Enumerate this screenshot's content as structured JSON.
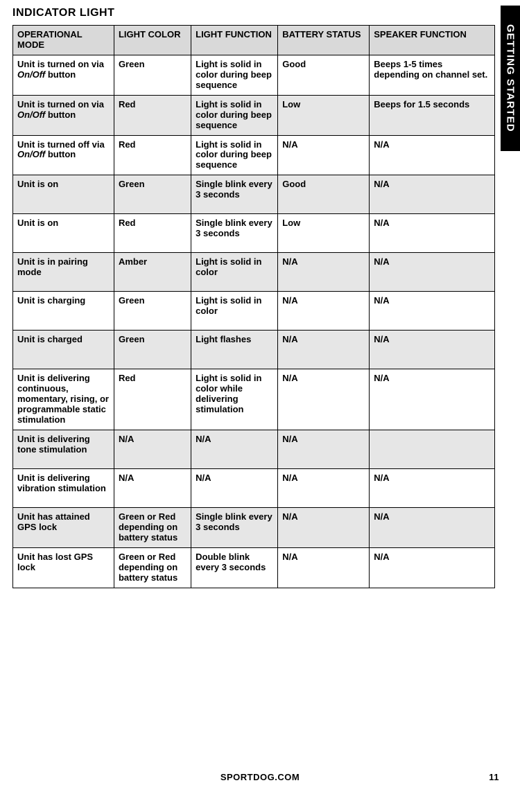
{
  "title": "INDICATOR LIGHT",
  "side_tab": "GETTING STARTED",
  "footer": {
    "site": "SPORTDOG.COM",
    "page": "11"
  },
  "table": {
    "headers": [
      "OPERATIONAL MODE",
      "LIGHT COLOR",
      "LIGHT FUNCTION",
      "BATTERY STATUS",
      "SPEAKER FUNCTION"
    ],
    "rows": [
      {
        "op_pre": "Unit is turned on via ",
        "op_it": "On/Off",
        "op_post": " button",
        "lc": "Green",
        "lf": "Light is solid in color during beep sequence",
        "bs": "Good",
        "sf": "Beeps 1-5 times depending on channel set.",
        "grey": false
      },
      {
        "op_pre": "Unit is turned on via ",
        "op_it": "On/Off",
        "op_post": " button",
        "lc": "Red",
        "lf": "Light is solid in color during beep sequence",
        "bs": "Low",
        "sf": "Beeps for 1.5 seconds",
        "grey": true
      },
      {
        "op_pre": "Unit is turned off via ",
        "op_it": "On/Off",
        "op_post": " button",
        "lc": "Red",
        "lf": "Light is solid in color during beep sequence",
        "bs": "N/A",
        "sf": "N/A",
        "grey": false
      },
      {
        "op_pre": "Unit is on",
        "op_it": "",
        "op_post": "",
        "lc": "Green",
        "lf": "Single blink every 3 seconds",
        "bs": "Good",
        "sf": "N/A",
        "grey": true
      },
      {
        "op_pre": "Unit is on",
        "op_it": "",
        "op_post": "",
        "lc": "Red",
        "lf": "Single blink every 3 seconds",
        "bs": "Low",
        "sf": "N/A",
        "grey": false
      },
      {
        "op_pre": "Unit is in pairing mode",
        "op_it": "",
        "op_post": "",
        "lc": "Amber",
        "lf": "Light is solid in color",
        "bs": "N/A",
        "sf": "N/A",
        "grey": true
      },
      {
        "op_pre": "Unit is charging",
        "op_it": "",
        "op_post": "",
        "lc": "Green",
        "lf": "Light is solid in color",
        "bs": "N/A",
        "sf": "N/A",
        "grey": false
      },
      {
        "op_pre": "Unit is charged",
        "op_it": "",
        "op_post": "",
        "lc": "Green",
        "lf": "Light flashes",
        "bs": "N/A",
        "sf": "N/A",
        "grey": true
      },
      {
        "op_pre": "Unit is delivering continuous, momentary, rising, or programmable static stimulation",
        "op_it": "",
        "op_post": "",
        "lc": "Red",
        "lf": "Light is solid in color while delivering stimulation",
        "bs": "N/A",
        "sf": "N/A",
        "grey": false
      },
      {
        "op_pre": "Unit is delivering tone stimulation",
        "op_it": "",
        "op_post": "",
        "lc": "N/A",
        "lf": "N/A",
        "bs": "N/A",
        "sf": "",
        "grey": true
      },
      {
        "op_pre": "Unit is delivering vibration stimulation",
        "op_it": "",
        "op_post": "",
        "lc": "N/A",
        "lf": "N/A",
        "bs": "N/A",
        "sf": "N/A",
        "grey": false
      },
      {
        "op_pre": "Unit has attained GPS lock",
        "op_it": "",
        "op_post": "",
        "lc": "Green or Red depending on battery status",
        "lf": "Single blink every 3 seconds",
        "bs": "N/A",
        "sf": "N/A",
        "grey": true
      },
      {
        "op_pre": "Unit has lost GPS lock",
        "op_it": "",
        "op_post": "",
        "lc": "Green or Red depending on battery status",
        "lf": "Double blink every 3 seconds",
        "bs": "N/A",
        "sf": "N/A",
        "grey": false
      }
    ]
  }
}
